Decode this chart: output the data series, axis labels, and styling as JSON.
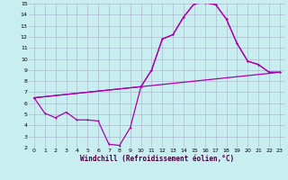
{
  "background_color": "#c8eef0",
  "grid_color": "#b0b8d0",
  "line_color": "#aa00aa",
  "xlim": [
    -0.5,
    23.5
  ],
  "ylim": [
    2,
    15
  ],
  "xticks": [
    0,
    1,
    2,
    3,
    4,
    5,
    6,
    7,
    8,
    9,
    10,
    11,
    12,
    13,
    14,
    15,
    16,
    17,
    18,
    19,
    20,
    21,
    22,
    23
  ],
  "yticks": [
    2,
    3,
    4,
    5,
    6,
    7,
    8,
    9,
    10,
    11,
    12,
    13,
    14,
    15
  ],
  "xlabel": "Windchill (Refroidissement éolien,°C)",
  "line1_x": [
    0,
    1,
    2,
    3,
    4,
    5,
    6,
    7,
    8,
    9,
    10,
    11,
    12,
    13,
    14,
    15,
    16,
    17,
    18,
    19,
    20,
    21,
    22,
    23
  ],
  "line1_y": [
    6.5,
    5.1,
    4.7,
    5.2,
    4.5,
    4.5,
    4.4,
    2.3,
    2.2,
    3.8,
    7.5,
    9.0,
    11.8,
    12.2,
    13.8,
    15.0,
    15.1,
    14.9,
    13.6,
    11.4,
    9.8,
    9.5,
    8.8,
    8.8
  ],
  "line2_x": [
    0,
    10,
    11,
    12,
    13,
    14,
    15,
    16,
    17,
    18,
    19,
    20,
    21,
    22,
    23
  ],
  "line2_y": [
    6.5,
    7.5,
    9.0,
    11.8,
    12.2,
    13.8,
    15.0,
    15.1,
    14.9,
    13.6,
    11.4,
    9.8,
    9.5,
    8.8,
    8.8
  ],
  "line3_x": [
    0,
    23
  ],
  "line3_y": [
    6.5,
    8.8
  ]
}
